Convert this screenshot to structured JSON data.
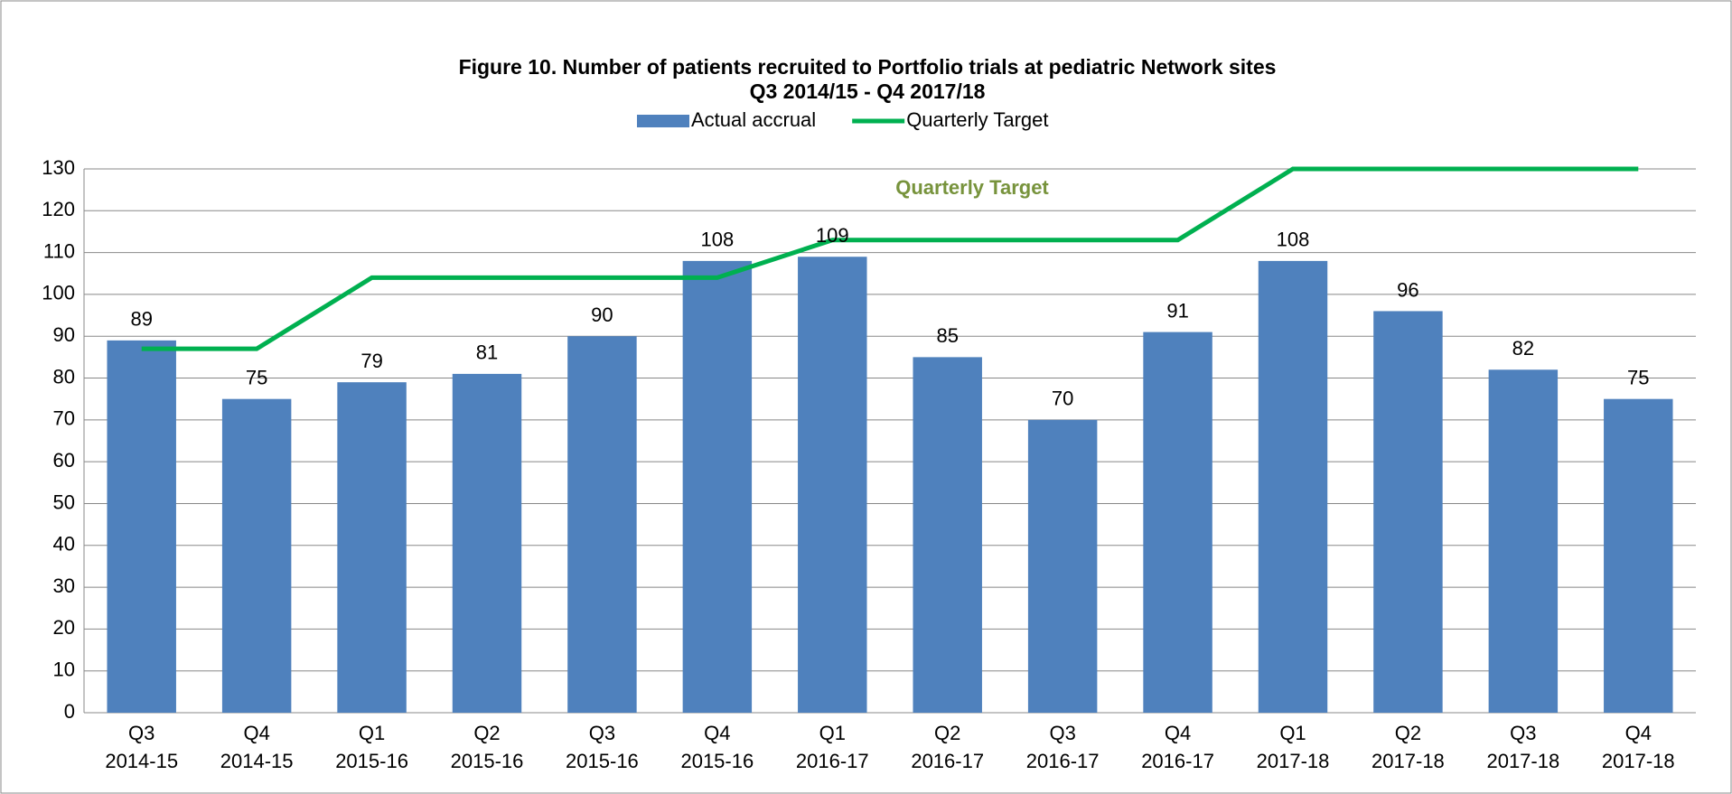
{
  "chart_data": {
    "type": "bar_line",
    "title": "Figure 10. Number of patients recruited to Portfolio trials at pediatric Network sites",
    "subtitle": "Q3 2014/15 - Q4 2017/18",
    "annotation": "Quarterly Target",
    "categories": [
      [
        "Q3",
        "2014-15"
      ],
      [
        "Q4",
        "2014-15"
      ],
      [
        "Q1",
        "2015-16"
      ],
      [
        "Q2",
        "2015-16"
      ],
      [
        "Q3",
        "2015-16"
      ],
      [
        "Q4",
        "2015-16"
      ],
      [
        "Q1",
        "2016-17"
      ],
      [
        "Q2",
        "2016-17"
      ],
      [
        "Q3",
        "2016-17"
      ],
      [
        "Q4",
        "2016-17"
      ],
      [
        "Q1",
        "2017-18"
      ],
      [
        "Q2",
        "2017-18"
      ],
      [
        "Q3",
        "2017-18"
      ],
      [
        "Q4",
        "2017-18"
      ]
    ],
    "series": [
      {
        "name": "Actual accrual",
        "type": "bar",
        "color": "#4f81bd",
        "values": [
          89,
          75,
          79,
          81,
          90,
          108,
          109,
          85,
          70,
          91,
          108,
          96,
          82,
          75
        ]
      },
      {
        "name": "Quarterly Target",
        "type": "line",
        "color": "#00b050",
        "values": [
          87,
          87,
          104,
          104,
          104,
          104,
          113,
          113,
          113,
          113,
          130,
          130,
          130,
          130
        ]
      }
    ],
    "ylim": [
      0,
      130
    ],
    "yticks": [
      0,
      10,
      20,
      30,
      40,
      50,
      60,
      70,
      80,
      90,
      100,
      110,
      120,
      130
    ],
    "grid": true,
    "legend": "top"
  }
}
